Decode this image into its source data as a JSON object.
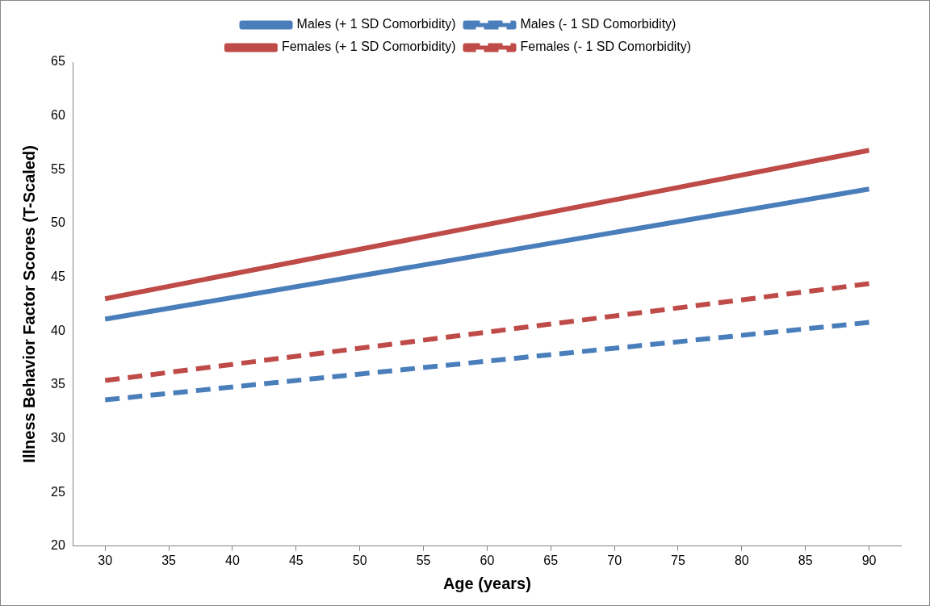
{
  "chart_data": {
    "type": "line",
    "xlabel": "Age (years)",
    "ylabel": "Illness Behavior Factor Scores (T-Scaled)",
    "x": [
      30,
      90
    ],
    "xlim": [
      27.5,
      92.5
    ],
    "xticks": [
      30,
      35,
      40,
      45,
      50,
      55,
      60,
      65,
      70,
      75,
      80,
      85,
      90
    ],
    "ylim": [
      20,
      65
    ],
    "yticks": [
      20,
      25,
      30,
      35,
      40,
      45,
      50,
      55,
      60,
      65
    ],
    "grid": false,
    "legend": "top",
    "marker": "none",
    "series": [
      {
        "name": "Males (+ 1 SD Comorbidity)",
        "color": "#4a7ebb",
        "values": [
          41.1,
          53.2
        ],
        "line_style": "solid"
      },
      {
        "name": "Males (- 1 SD Comorbidity)",
        "color": "#4a7ebb",
        "values": [
          33.6,
          40.8
        ],
        "line_style": "dashed"
      },
      {
        "name": "Females (+ 1 SD Comorbidity)",
        "color": "#be4b48",
        "values": [
          43.0,
          56.8
        ],
        "line_style": "solid"
      },
      {
        "name": "Females (- 1 SD Comorbidity)",
        "color": "#be4b48",
        "values": [
          35.4,
          44.4
        ],
        "line_style": "dashed"
      }
    ]
  }
}
